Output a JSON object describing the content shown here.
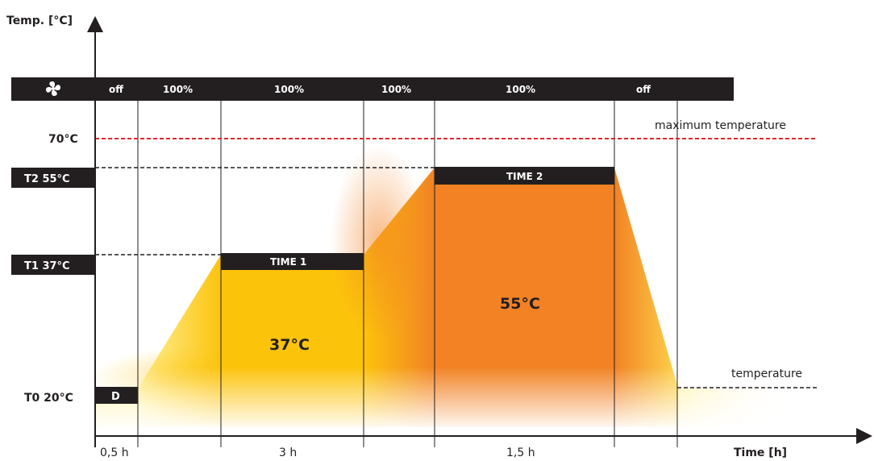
{
  "axis": {
    "y_label": "Temp. [°C]",
    "x_label": "Time [h]"
  },
  "fan_bar": {
    "icon": "fan-icon",
    "segments": [
      "off",
      "100%",
      "100%",
      "100%",
      "100%",
      "off"
    ]
  },
  "levels": {
    "max_line_value": "70°C",
    "max_line_label": "maximum temperature",
    "t2_badge": "T2 55°C",
    "t1_badge": "T1 37°C",
    "t0_label": "T0 20°C",
    "ambient_label": "temperature"
  },
  "phases": {
    "d_badge": "D",
    "time1_badge": "TIME 1",
    "time2_badge": "TIME 2",
    "temp1_value": "37°C",
    "temp2_value": "55°C"
  },
  "durations": [
    "0,5 h",
    "3 h",
    "1,5 h"
  ],
  "colors": {
    "bar_black": "#231f20",
    "max_line_red": "#e3262b",
    "phase1_yellow": "#fcc30b",
    "phase2_orange": "#f28224",
    "pale_yellow": "#fff2a8"
  }
}
